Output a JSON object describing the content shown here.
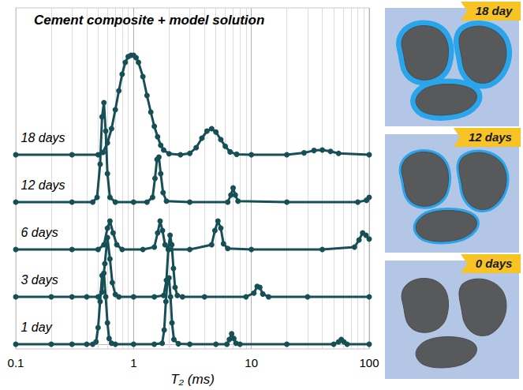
{
  "chart_data": {
    "type": "line",
    "title": "Cement composite + model solution",
    "xlabel": "T₂ (ms)",
    "log": "x",
    "xlim": [
      0.1,
      100
    ],
    "xticks": [
      0.1,
      1,
      10,
      100
    ],
    "ylim": [
      -0.1,
      7.1
    ],
    "tick_labels": "x",
    "grid": true,
    "marker": "circle",
    "line_style": "solid",
    "color": "#174f57",
    "series": [
      {
        "name": "1 day",
        "offset": 0,
        "x": [
          0.1,
          0.2,
          0.3,
          0.4,
          0.45,
          0.48,
          0.5,
          0.52,
          0.54,
          0.56,
          0.58,
          0.6,
          0.62,
          0.65,
          0.7,
          1,
          1.5,
          1.75,
          1.82,
          1.88,
          1.94,
          2.0,
          2.06,
          2.12,
          2.2,
          2.4,
          3,
          5,
          6.2,
          6.5,
          6.8,
          7.1,
          7.4,
          8,
          20,
          50,
          55,
          58,
          61,
          65,
          100
        ],
        "values": [
          0,
          0,
          0,
          0,
          0,
          0.05,
          0.35,
          0.9,
          1.45,
          1.5,
          1.0,
          0.45,
          0.12,
          0.02,
          0,
          0,
          0,
          0.02,
          0.3,
          0.9,
          1.35,
          1.4,
          1.0,
          0.45,
          0.1,
          0.01,
          0,
          0,
          0,
          0.1,
          0.22,
          0.12,
          0.02,
          0,
          0,
          0,
          0.05,
          0.1,
          0.05,
          0,
          0
        ]
      },
      {
        "name": "3 days",
        "offset": 1,
        "x": [
          0.1,
          0.2,
          0.3,
          0.4,
          0.5,
          0.54,
          0.57,
          0.6,
          0.63,
          0.66,
          0.7,
          0.75,
          1,
          1.5,
          1.8,
          1.9,
          1.97,
          2.04,
          2.11,
          2.18,
          2.25,
          2.35,
          2.6,
          4,
          9,
          10.5,
          11.2,
          11.8,
          12.5,
          14,
          30,
          100
        ],
        "values": [
          0,
          0,
          0,
          0,
          0,
          0.1,
          0.7,
          1.25,
          0.8,
          0.3,
          0.05,
          0,
          0,
          0,
          0.03,
          0.35,
          1.0,
          1.3,
          1.1,
          0.6,
          0.2,
          0.03,
          0,
          0,
          0,
          0.08,
          0.22,
          0.2,
          0.06,
          0,
          0,
          0
        ]
      },
      {
        "name": "6 days",
        "offset": 2,
        "x": [
          0.1,
          0.3,
          0.5,
          0.56,
          0.6,
          0.63,
          0.67,
          0.72,
          0.8,
          1.2,
          1.5,
          1.6,
          1.68,
          1.76,
          1.85,
          2,
          3,
          4.6,
          4.9,
          5.2,
          5.5,
          5.8,
          6.3,
          10,
          40,
          75,
          82,
          88,
          94,
          100
        ],
        "values": [
          0,
          0,
          0,
          0.1,
          0.45,
          0.6,
          0.35,
          0.1,
          0,
          0,
          0.05,
          0.35,
          0.6,
          0.4,
          0.1,
          0,
          0,
          0.1,
          0.4,
          0.6,
          0.45,
          0.12,
          0.02,
          0,
          0,
          0.05,
          0.2,
          0.35,
          0.3,
          0.22
        ]
      },
      {
        "name": "12 days",
        "offset": 3,
        "x": [
          0.1,
          0.3,
          0.45,
          0.49,
          0.52,
          0.54,
          0.56,
          0.58,
          0.6,
          0.63,
          0.7,
          1,
          1.3,
          1.45,
          1.52,
          1.58,
          1.64,
          1.7,
          1.78,
          1.9,
          3,
          6.3,
          6.7,
          7,
          7.3,
          7.7,
          20,
          80,
          95,
          100
        ],
        "values": [
          0,
          0,
          0,
          0.1,
          0.8,
          1.8,
          2.1,
          1.5,
          0.6,
          0.1,
          0,
          0,
          0,
          0.1,
          0.5,
          0.9,
          0.95,
          0.6,
          0.2,
          0.02,
          0,
          0,
          0.15,
          0.3,
          0.15,
          0.02,
          0,
          0,
          0.04,
          0.1
        ]
      },
      {
        "name": "18 days",
        "offset": 4,
        "x": [
          0.1,
          0.3,
          0.5,
          0.55,
          0.6,
          0.65,
          0.7,
          0.75,
          0.8,
          0.85,
          0.9,
          0.95,
          1,
          1.05,
          1.1,
          1.2,
          1.3,
          1.4,
          1.5,
          1.6,
          1.7,
          1.8,
          2,
          2.5,
          3,
          3.4,
          3.8,
          4.2,
          4.6,
          5,
          5.5,
          6,
          6.6,
          7.5,
          10,
          20,
          28,
          34,
          40,
          47,
          55,
          100
        ],
        "values": [
          0,
          0,
          0,
          0.05,
          0.25,
          0.55,
          0.95,
          1.35,
          1.7,
          1.95,
          2.07,
          2.1,
          2.1,
          2.05,
          1.95,
          1.65,
          1.25,
          0.9,
          0.6,
          0.38,
          0.2,
          0.1,
          0.02,
          0,
          0.03,
          0.15,
          0.35,
          0.5,
          0.55,
          0.48,
          0.32,
          0.18,
          0.06,
          0.01,
          0,
          0,
          0.04,
          0.09,
          0.1,
          0.07,
          0.03,
          0
        ]
      }
    ]
  },
  "illustrations": [
    {
      "label": "18 day"
    },
    {
      "label": "12 days"
    },
    {
      "label": "0 days"
    }
  ]
}
